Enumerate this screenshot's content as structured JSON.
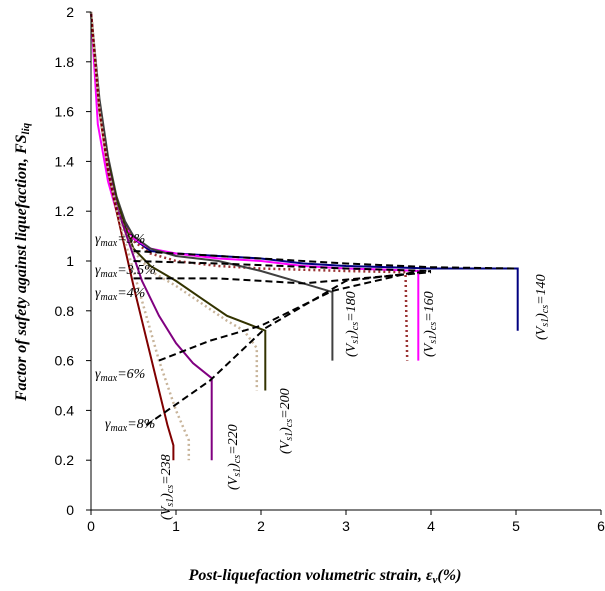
{
  "chart_data": {
    "type": "line",
    "xlabel": "Post-liquefaction volumetric strain, ε",
    "xlabel_sub": "v",
    "xlabel_unit": "(%)",
    "ylabel": "Factor of safety against liquefaction, FS",
    "ylabel_sub": "liq",
    "xlim": [
      0,
      6
    ],
    "ylim": [
      0,
      2
    ],
    "xticks": [
      "0",
      "1",
      "2",
      "3",
      "4",
      "5",
      "6"
    ],
    "yticks": [
      "0",
      "0.2",
      "0.4",
      "0.6",
      "0.8",
      "1",
      "1.2",
      "1.4",
      "1.6",
      "1.8",
      "2"
    ],
    "grid": false,
    "series": [
      {
        "name": "(Vs1)cs=140",
        "color": "#000080",
        "style": "solid",
        "points": [
          [
            0,
            2
          ],
          [
            0.1,
            1.62
          ],
          [
            0.2,
            1.4
          ],
          [
            0.3,
            1.25
          ],
          [
            0.4,
            1.15
          ],
          [
            0.5,
            1.09
          ],
          [
            0.7,
            1.04
          ],
          [
            1.0,
            1.03
          ],
          [
            1.5,
            1.02
          ],
          [
            2.0,
            1.01
          ],
          [
            2.5,
            0.99
          ],
          [
            3.0,
            0.98
          ],
          [
            4.0,
            0.97
          ],
          [
            5.0,
            0.97
          ],
          [
            5.02,
            0.97
          ],
          [
            5.02,
            0.72
          ]
        ]
      },
      {
        "name": "(Vs1)cs=160",
        "color": "#ff00ff",
        "style": "solid",
        "points": [
          [
            0,
            2
          ],
          [
            0.08,
            1.55
          ],
          [
            0.2,
            1.32
          ],
          [
            0.3,
            1.2
          ],
          [
            0.4,
            1.14
          ],
          [
            0.5,
            1.09
          ],
          [
            0.7,
            1.05
          ],
          [
            1.0,
            1.03
          ],
          [
            1.5,
            1.01
          ],
          [
            2.0,
            1.0
          ],
          [
            2.5,
            0.98
          ],
          [
            3.0,
            0.97
          ],
          [
            3.5,
            0.965
          ],
          [
            3.85,
            0.96
          ],
          [
            3.85,
            0.6
          ]
        ]
      },
      {
        "name": "",
        "color": "#993333",
        "style": "dotted",
        "points": [
          [
            0,
            2
          ],
          [
            0.1,
            1.6
          ],
          [
            0.2,
            1.38
          ],
          [
            0.3,
            1.24
          ],
          [
            0.4,
            1.15
          ],
          [
            0.5,
            1.08
          ],
          [
            0.7,
            1.03
          ],
          [
            1.0,
            1.0
          ],
          [
            1.5,
            0.98
          ],
          [
            2.0,
            0.97
          ],
          [
            3.0,
            0.96
          ],
          [
            3.7,
            0.955
          ],
          [
            3.72,
            0.6
          ]
        ]
      },
      {
        "name": "(Vs1)cs=180",
        "color": "#404040",
        "style": "solid",
        "points": [
          [
            0,
            2
          ],
          [
            0.1,
            1.65
          ],
          [
            0.2,
            1.42
          ],
          [
            0.3,
            1.26
          ],
          [
            0.4,
            1.16
          ],
          [
            0.5,
            1.1
          ],
          [
            0.7,
            1.05
          ],
          [
            1.0,
            1.02
          ],
          [
            1.5,
            1.0
          ],
          [
            2.0,
            0.96
          ],
          [
            2.5,
            0.91
          ],
          [
            2.84,
            0.875
          ],
          [
            2.84,
            0.6
          ]
        ]
      },
      {
        "name": "(Vs1)cs=200",
        "color": "#333300",
        "style": "solid",
        "points": [
          [
            0,
            2
          ],
          [
            0.1,
            1.6
          ],
          [
            0.2,
            1.4
          ],
          [
            0.3,
            1.25
          ],
          [
            0.4,
            1.14
          ],
          [
            0.5,
            1.05
          ],
          [
            0.7,
            0.98
          ],
          [
            1.0,
            0.92
          ],
          [
            1.3,
            0.85
          ],
          [
            1.6,
            0.78
          ],
          [
            1.9,
            0.74
          ],
          [
            2.05,
            0.72
          ],
          [
            2.05,
            0.48
          ]
        ]
      },
      {
        "name": "",
        "color": "#c8b49a",
        "style": "dotted",
        "points": [
          [
            0,
            2
          ],
          [
            0.1,
            1.6
          ],
          [
            0.2,
            1.37
          ],
          [
            0.3,
            1.22
          ],
          [
            0.4,
            1.12
          ],
          [
            0.5,
            1.04
          ],
          [
            0.7,
            0.96
          ],
          [
            1.0,
            0.9
          ],
          [
            1.3,
            0.83
          ],
          [
            1.6,
            0.76
          ],
          [
            1.8,
            0.72
          ],
          [
            1.95,
            0.65
          ],
          [
            1.95,
            0.48
          ]
        ]
      },
      {
        "name": "(Vs1)cs=220",
        "color": "#800080",
        "style": "solid",
        "points": [
          [
            0,
            2
          ],
          [
            0.1,
            1.6
          ],
          [
            0.2,
            1.38
          ],
          [
            0.3,
            1.22
          ],
          [
            0.4,
            1.12
          ],
          [
            0.5,
            1.02
          ],
          [
            0.6,
            0.92
          ],
          [
            0.8,
            0.78
          ],
          [
            1.0,
            0.67
          ],
          [
            1.2,
            0.59
          ],
          [
            1.4,
            0.535
          ],
          [
            1.42,
            0.53
          ],
          [
            1.42,
            0.2
          ]
        ]
      },
      {
        "name": "(Vs1)cs=238",
        "color": "#800000",
        "style": "solid",
        "points": [
          [
            0,
            2
          ],
          [
            0.1,
            1.6
          ],
          [
            0.2,
            1.36
          ],
          [
            0.3,
            1.2
          ],
          [
            0.4,
            1.05
          ],
          [
            0.5,
            0.9
          ],
          [
            0.6,
            0.76
          ],
          [
            0.7,
            0.62
          ],
          [
            0.8,
            0.48
          ],
          [
            0.9,
            0.34
          ],
          [
            0.97,
            0.26
          ],
          [
            0.97,
            0.2
          ]
        ]
      },
      {
        "name": "",
        "color": "#c8b49a",
        "style": "dotted",
        "points": [
          [
            0,
            2
          ],
          [
            0.1,
            1.6
          ],
          [
            0.2,
            1.37
          ],
          [
            0.3,
            1.21
          ],
          [
            0.4,
            1.08
          ],
          [
            0.5,
            0.96
          ],
          [
            0.6,
            0.84
          ],
          [
            0.7,
            0.72
          ],
          [
            0.8,
            0.6
          ],
          [
            0.9,
            0.5
          ],
          [
            1.0,
            0.4
          ],
          [
            1.1,
            0.32
          ],
          [
            1.15,
            0.28
          ],
          [
            1.15,
            0.2
          ]
        ]
      }
    ],
    "gamma_max_curves": [
      {
        "label": "γmax=3%",
        "points": [
          [
            0.5,
            1.04
          ],
          [
            1.5,
            1.02
          ],
          [
            3,
            0.99
          ],
          [
            4,
            0.975
          ],
          [
            5,
            0.97
          ]
        ]
      },
      {
        "label": "γmax=3.5%",
        "points": [
          [
            0.5,
            1.0
          ],
          [
            1.5,
            0.99
          ],
          [
            3,
            0.97
          ],
          [
            4,
            0.96
          ]
        ]
      },
      {
        "label": "γmax=4%",
        "points": [
          [
            0.5,
            0.93
          ],
          [
            1.5,
            0.93
          ],
          [
            2.5,
            0.91
          ],
          [
            3.5,
            0.94
          ],
          [
            4,
            0.955
          ]
        ]
      },
      {
        "label": "γmax=6%",
        "points": [
          [
            0.8,
            0.6
          ],
          [
            1.4,
            0.68
          ],
          [
            2.0,
            0.74
          ],
          [
            2.84,
            0.88
          ],
          [
            3.85,
            0.96
          ]
        ]
      },
      {
        "label": "γmax=8%",
        "points": [
          [
            0.65,
            0.34
          ],
          [
            1.4,
            0.52
          ],
          [
            2.05,
            0.73
          ],
          [
            3.0,
            0.92
          ],
          [
            4.0,
            0.96
          ]
        ]
      }
    ],
    "gamma_max_labels": [
      {
        "prefix": "γ",
        "sub": "max",
        "value": "=3%"
      },
      {
        "prefix": "γ",
        "sub": "max",
        "value": "=3.5%"
      },
      {
        "prefix": "γ",
        "sub": "max",
        "value": "=4%"
      },
      {
        "prefix": "γ",
        "sub": "max",
        "value": "=6%"
      },
      {
        "prefix": "γ",
        "sub": "max",
        "value": "=8%"
      }
    ],
    "vs_labels": [
      {
        "prefix": "(V",
        "sub": "s1",
        "mid": ")",
        "sub2": "cs",
        "value": "=140"
      },
      {
        "prefix": "(V",
        "sub": "s1",
        "mid": ")",
        "sub2": "cs",
        "value": "=160"
      },
      {
        "prefix": "(V",
        "sub": "s1",
        "mid": ")",
        "sub2": "cs",
        "value": "=180"
      },
      {
        "prefix": "(V",
        "sub": "s1",
        "mid": ")",
        "sub2": "cs",
        "value": "=200"
      },
      {
        "prefix": "(V",
        "sub": "s1",
        "mid": ")",
        "sub2": "cs",
        "value": "=220"
      },
      {
        "prefix": "(V",
        "sub": "s1",
        "mid": ")",
        "sub2": "cs",
        "value": "=238"
      }
    ]
  }
}
